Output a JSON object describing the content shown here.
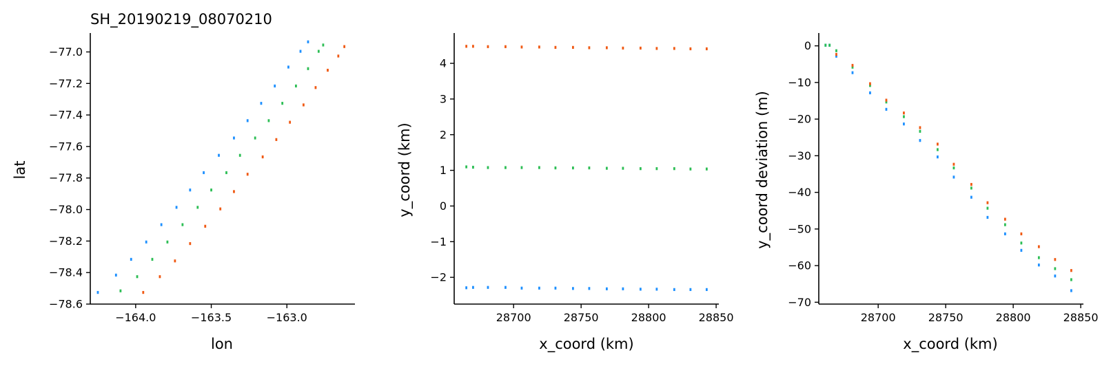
{
  "colors": {
    "series_a": "#1E90FF",
    "series_b": "#2DBE55",
    "series_c": "#F05A14",
    "axis": "#000000"
  },
  "chart_data": [
    {
      "type": "scatter",
      "title": "SH_20190219_08070210",
      "xlabel": "lon",
      "ylabel": "lat",
      "xlim": [
        -164.3,
        -162.55
      ],
      "ylim": [
        -78.6,
        -76.88
      ],
      "xticks": [
        -164.0,
        -163.5,
        -163.0
      ],
      "xtick_labels": [
        "−164.0",
        "−163.5",
        "−163.0"
      ],
      "yticks": [
        -77.0,
        -77.2,
        -77.4,
        -77.6,
        -77.8,
        -78.0,
        -78.2,
        -78.4,
        -78.6
      ],
      "ytick_labels": [
        "−77.0",
        "−77.2",
        "−77.4",
        "−77.6",
        "−77.8",
        "−78.0",
        "−78.2",
        "−78.4",
        "−78.6"
      ],
      "grid": false,
      "series": [
        {
          "color": "#1E90FF",
          "x": [
            -164.25,
            -164.13,
            -164.03,
            -163.93,
            -163.83,
            -163.73,
            -163.64,
            -163.55,
            -163.45,
            -163.35,
            -163.26,
            -163.17,
            -163.08,
            -162.99,
            -162.91,
            -162.86
          ],
          "y": [
            -78.53,
            -78.42,
            -78.32,
            -78.21,
            -78.1,
            -77.99,
            -77.88,
            -77.77,
            -77.66,
            -77.55,
            -77.44,
            -77.33,
            -77.22,
            -77.1,
            -77.0,
            -76.94
          ]
        },
        {
          "color": "#2DBE55",
          "x": [
            -164.1,
            -163.99,
            -163.89,
            -163.79,
            -163.69,
            -163.59,
            -163.5,
            -163.4,
            -163.31,
            -163.21,
            -163.12,
            -163.03,
            -162.94,
            -162.86,
            -162.79,
            -162.76
          ],
          "y": [
            -78.52,
            -78.43,
            -78.32,
            -78.21,
            -78.1,
            -77.99,
            -77.88,
            -77.77,
            -77.66,
            -77.55,
            -77.44,
            -77.33,
            -77.22,
            -77.11,
            -77.0,
            -76.96
          ]
        },
        {
          "color": "#F05A14",
          "x": [
            -163.95,
            -163.84,
            -163.74,
            -163.64,
            -163.54,
            -163.44,
            -163.35,
            -163.26,
            -163.16,
            -163.07,
            -162.98,
            -162.89,
            -162.81,
            -162.73,
            -162.66,
            -162.62
          ],
          "y": [
            -78.53,
            -78.43,
            -78.33,
            -78.22,
            -78.11,
            -78.0,
            -77.89,
            -77.78,
            -77.67,
            -77.56,
            -77.45,
            -77.34,
            -77.23,
            -77.12,
            -77.03,
            -76.97
          ]
        }
      ]
    },
    {
      "type": "scatter",
      "xlabel": "x_coord (km)",
      "ylabel": "y_coord (km)",
      "xlim": [
        28656,
        28852
      ],
      "ylim": [
        -2.75,
        4.85
      ],
      "xticks": [
        28700,
        28750,
        28800,
        28850
      ],
      "xtick_labels": [
        "28700",
        "28750",
        "28800",
        "28850"
      ],
      "yticks": [
        -2,
        -1,
        0,
        1,
        2,
        3,
        4
      ],
      "ytick_labels": [
        "−2",
        "−1",
        "0",
        "1",
        "2",
        "3",
        "4"
      ],
      "grid": false,
      "series": [
        {
          "color": "#1E90FF",
          "x": [
            28665,
            28670,
            28681,
            28694,
            28706,
            28719,
            28731,
            28744,
            28756,
            28769,
            28781,
            28794,
            28806,
            28819,
            28831,
            28843
          ],
          "y": [
            -2.31,
            -2.3,
            -2.3,
            -2.3,
            -2.32,
            -2.32,
            -2.32,
            -2.33,
            -2.33,
            -2.34,
            -2.34,
            -2.35,
            -2.35,
            -2.36,
            -2.36,
            -2.36
          ]
        },
        {
          "color": "#2DBE55",
          "x": [
            28665,
            28670,
            28681,
            28694,
            28706,
            28719,
            28731,
            28744,
            28756,
            28769,
            28781,
            28794,
            28806,
            28819,
            28831,
            28843
          ],
          "y": [
            1.08,
            1.07,
            1.06,
            1.06,
            1.06,
            1.06,
            1.05,
            1.05,
            1.05,
            1.04,
            1.04,
            1.03,
            1.03,
            1.03,
            1.02,
            1.02
          ]
        },
        {
          "color": "#F05A14",
          "x": [
            28665,
            28670,
            28681,
            28694,
            28706,
            28719,
            28731,
            28744,
            28756,
            28769,
            28781,
            28794,
            28806,
            28819,
            28831,
            28843
          ],
          "y": [
            4.46,
            4.46,
            4.45,
            4.45,
            4.44,
            4.44,
            4.43,
            4.43,
            4.42,
            4.42,
            4.41,
            4.41,
            4.4,
            4.4,
            4.39,
            4.39
          ]
        }
      ]
    },
    {
      "type": "scatter",
      "xlabel": "x_coord (km)",
      "ylabel": "y_coord deviation (m)",
      "xlim": [
        28656,
        28852
      ],
      "ylim": [
        -70.5,
        3.5
      ],
      "xticks": [
        28700,
        28750,
        28800,
        28850
      ],
      "xtick_labels": [
        "28700",
        "28750",
        "28800",
        "28850"
      ],
      "yticks": [
        0,
        -10,
        -20,
        -30,
        -40,
        -50,
        -60,
        -70
      ],
      "ytick_labels": [
        "0",
        "−10",
        "−20",
        "−30",
        "−40",
        "−50",
        "−60",
        "−70"
      ],
      "grid": false,
      "series": [
        {
          "color": "#1E90FF",
          "x": [
            28661,
            28664,
            28669,
            28681,
            28694,
            28706,
            28719,
            28731,
            28744,
            28756,
            28769,
            28781,
            28794,
            28806,
            28819,
            28831,
            28843
          ],
          "y": [
            0,
            0,
            -3,
            -7.5,
            -13,
            -17.5,
            -21.5,
            -26,
            -30.5,
            -36,
            -41.5,
            -47,
            -51.5,
            -56,
            -60,
            -63,
            -67
          ]
        },
        {
          "color": "#2DBE55",
          "x": [
            28661,
            28664,
            28669,
            28681,
            28694,
            28706,
            28719,
            28731,
            28744,
            28756,
            28769,
            28781,
            28794,
            28806,
            28819,
            28831,
            28843
          ],
          "y": [
            0,
            0,
            -1.5,
            -6,
            -11,
            -15.5,
            -19.5,
            -23.5,
            -28.5,
            -33.5,
            -39,
            -44.5,
            -49,
            -54,
            -58,
            -61,
            -64
          ]
        },
        {
          "color": "#F05A14",
          "x": [
            28669,
            28681,
            28694,
            28706,
            28719,
            28731,
            28744,
            28756,
            28769,
            28781,
            28794,
            28806,
            28819,
            28831,
            28843
          ],
          "y": [
            -2.5,
            -5.5,
            -10.5,
            -15,
            -18.5,
            -22.5,
            -27,
            -32.5,
            -38,
            -43,
            -47.5,
            -51.5,
            -55,
            -58.5,
            -61.5
          ]
        }
      ]
    }
  ]
}
